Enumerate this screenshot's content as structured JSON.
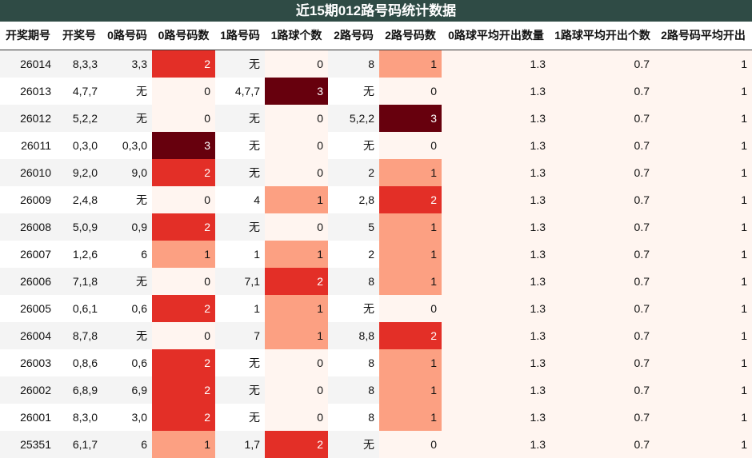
{
  "title": "近15期012路号码统计数据",
  "table": {
    "header": [
      "开奖期号",
      "开奖号",
      "0路号码",
      "0路号码数",
      "1路号码",
      "1路球个数",
      "2路号码",
      "2路号码数",
      "0路球平均开出数量",
      "1路球平均开出个数",
      "2路号码平均开出"
    ],
    "heat_colors": [
      "#fff5f0",
      "#fca082",
      "#e32f27",
      "#67000d"
    ],
    "rows": [
      [
        "26014",
        "8,3,3",
        "3,3",
        2,
        "无",
        0,
        "8",
        1,
        1.3,
        0.7,
        1
      ],
      [
        "26013",
        "4,7,7",
        "无",
        0,
        "4,7,7",
        3,
        "无",
        0,
        1.3,
        0.7,
        1
      ],
      [
        "26012",
        "5,2,2",
        "无",
        0,
        "无",
        0,
        "5,2,2",
        3,
        1.3,
        0.7,
        1
      ],
      [
        "26011",
        "0,3,0",
        "0,3,0",
        3,
        "无",
        0,
        "无",
        0,
        1.3,
        0.7,
        1
      ],
      [
        "26010",
        "9,2,0",
        "9,0",
        2,
        "无",
        0,
        "2",
        1,
        1.3,
        0.7,
        1
      ],
      [
        "26009",
        "2,4,8",
        "无",
        0,
        "4",
        1,
        "2,8",
        2,
        1.3,
        0.7,
        1
      ],
      [
        "26008",
        "5,0,9",
        "0,9",
        2,
        "无",
        0,
        "5",
        1,
        1.3,
        0.7,
        1
      ],
      [
        "26007",
        "1,2,6",
        "6",
        1,
        "1",
        1,
        "2",
        1,
        1.3,
        0.7,
        1
      ],
      [
        "26006",
        "7,1,8",
        "无",
        0,
        "7,1",
        2,
        "8",
        1,
        1.3,
        0.7,
        1
      ],
      [
        "26005",
        "0,6,1",
        "0,6",
        2,
        "1",
        1,
        "无",
        0,
        1.3,
        0.7,
        1
      ],
      [
        "26004",
        "8,7,8",
        "无",
        0,
        "7",
        1,
        "8,8",
        2,
        1.3,
        0.7,
        1
      ],
      [
        "26003",
        "0,8,6",
        "0,6",
        2,
        "无",
        0,
        "8",
        1,
        1.3,
        0.7,
        1
      ],
      [
        "26002",
        "6,8,9",
        "6,9",
        2,
        "无",
        0,
        "8",
        1,
        1.3,
        0.7,
        1
      ],
      [
        "26001",
        "8,3,0",
        "3,0",
        2,
        "无",
        0,
        "8",
        1,
        1.3,
        0.7,
        1
      ],
      [
        "25351",
        "6,1,7",
        "6",
        1,
        "1,7",
        2,
        "无",
        0,
        1.3,
        0.7,
        1
      ]
    ]
  }
}
